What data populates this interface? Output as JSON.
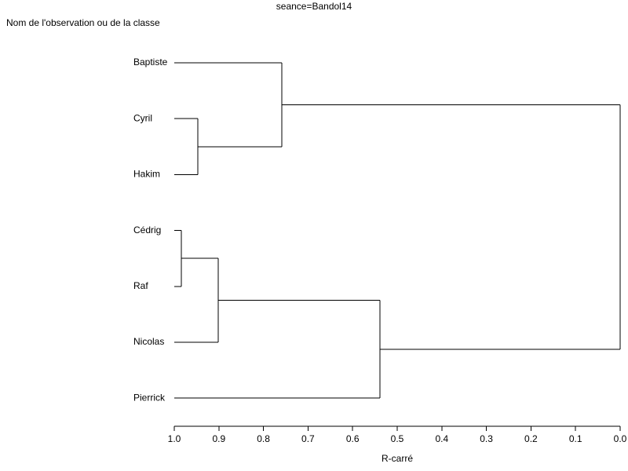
{
  "chart_data": {
    "type": "dendrogram",
    "title": "seance=Bandol14",
    "ylabel": "Nom de l'observation ou de la classe",
    "xlabel": "R-carré",
    "xlim": [
      1,
      0
    ],
    "xticks": [
      {
        "value": 1,
        "label": "1.0"
      },
      0.9,
      0.8,
      0.7,
      0.6,
      0.5,
      0.4,
      0.3,
      0.2,
      0.1,
      {
        "value": 0,
        "label": "0.0"
      }
    ],
    "color": "#000000",
    "tree": {
      "value": 0,
      "children": [
        {
          "value": 0.759,
          "children": [
            {
              "name": "Baptiste"
            },
            {
              "value": 0.947,
              "children": [
                {
                  "name": "Cyril"
                },
                {
                  "name": "Hakim"
                }
              ]
            }
          ]
        },
        {
          "value": 0.539,
          "children": [
            {
              "value": 0.901,
              "children": [
                {
                  "value": 0.984,
                  "children": [
                    {
                      "name": "Cédrig"
                    },
                    {
                      "name": "Raf"
                    }
                  ]
                },
                {
                  "name": "Nicolas"
                }
              ]
            },
            {
              "name": "Pierrick"
            }
          ]
        }
      ]
    }
  }
}
